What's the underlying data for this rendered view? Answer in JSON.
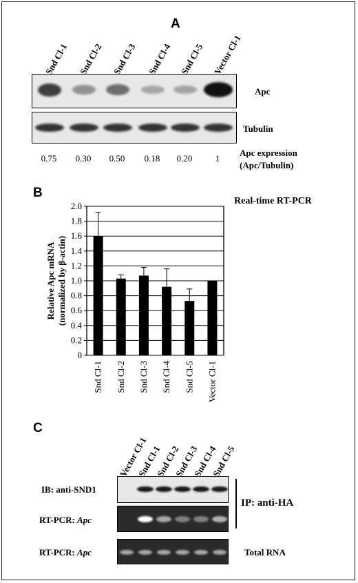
{
  "panel_a": {
    "letter": "A",
    "lanes": [
      "Snd Cl-1",
      "Snd Cl-2",
      "Snd Cl-3",
      "Snd Cl-4",
      "Snd Cl-5",
      "Vector Cl-1"
    ],
    "apc_label": "Apc",
    "tubulin_label": "Tubulin",
    "ratios": [
      "0.75",
      "0.30",
      "0.50",
      "0.18",
      "0.20",
      "1"
    ],
    "ratio_label_1": "Apc expression",
    "ratio_label_2": "(Apc/Tubulin)",
    "apc_band_intensity": [
      0.75,
      0.3,
      0.5,
      0.18,
      0.2,
      1.0
    ]
  },
  "panel_b": {
    "letter": "B",
    "title": "Real-time RT-PCR",
    "ylabel_1": "Relative Apc mRNA",
    "ylabel_2": "(normalized by β-actin)",
    "chart_data": {
      "type": "bar",
      "title": "Real-time RT-PCR",
      "ylabel": "Relative Apc mRNA (normalized by β-actin)",
      "categories": [
        "Snd Cl-1",
        "Snd Cl-2",
        "Snd Cl-3",
        "Snd Cl-4",
        "Snd Cl-5",
        "Vector Cl-1"
      ],
      "values": [
        1.6,
        1.03,
        1.07,
        0.92,
        0.73,
        1.0
      ],
      "errors": [
        0.32,
        0.05,
        0.11,
        0.24,
        0.16,
        0.0
      ],
      "ylim": [
        0,
        2.0
      ],
      "yticks": [
        "0",
        "0.2",
        "0.4",
        "0.6",
        "0.8",
        "1.0",
        "1.2",
        "1.4",
        "1.6",
        "1.8",
        "2.0"
      ],
      "grid": true
    }
  },
  "panel_c": {
    "letter": "C",
    "lanes": [
      "Vector Cl-1",
      "Snd Cl-1",
      "Snd Cl-2",
      "Snd Cl-3",
      "Snd Cl-4",
      "Snd Cl-5"
    ],
    "row1_label": "IB: anti-SND1",
    "row2_label_prefix": "RT-PCR: ",
    "row2_label_gene": "Apc",
    "row3_label_prefix": "RT-PCR: ",
    "row3_label_gene": "Apc",
    "ip_label": "IP: anti-HA",
    "total_label": "Total RNA",
    "snd1_intensity": [
      0.0,
      0.9,
      0.9,
      0.9,
      0.9,
      0.9
    ],
    "ip_apc_intensity": [
      0.0,
      1.0,
      0.55,
      0.35,
      0.35,
      0.6
    ],
    "total_apc_intensity": [
      0.55,
      0.55,
      0.55,
      0.55,
      0.55,
      0.55
    ]
  }
}
